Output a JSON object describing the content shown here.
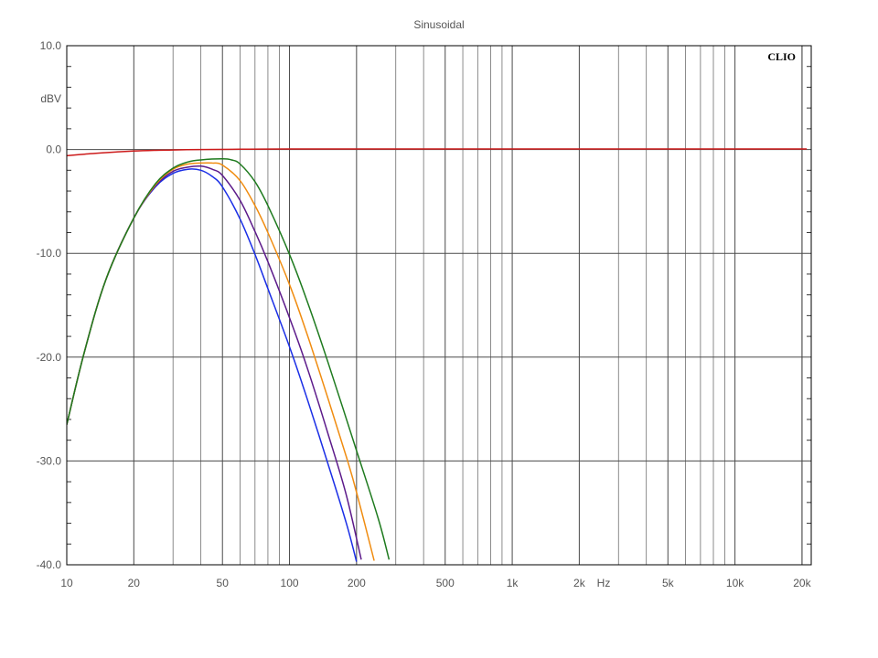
{
  "chart_data": {
    "type": "line",
    "title": "Sinusoidal",
    "brand": "CLIO",
    "ylabel": "dBV",
    "xunit": "Hz",
    "xscale": "log",
    "xlim": [
      10,
      22000
    ],
    "ylim": [
      -40,
      10
    ],
    "grid": true,
    "ytick_values": [
      10,
      0,
      -10,
      -20,
      -30,
      -40
    ],
    "ytick_labels": [
      "10.0",
      "0.0",
      "-10.0",
      "-20.0",
      "-30.0",
      "-40.0"
    ],
    "xtick_values": [
      10,
      20,
      50,
      100,
      200,
      500,
      1000,
      2000,
      5000,
      10000,
      20000
    ],
    "xtick_labels": [
      "10",
      "20",
      "50",
      "100",
      "200",
      "500",
      "1k",
      "2k",
      "5k",
      "10k",
      "20k"
    ],
    "series": [
      {
        "color": "#cc1a1a",
        "x": [
          10,
          12,
          15,
          20,
          25,
          30,
          40,
          60,
          100,
          1000,
          10000,
          21000
        ],
        "y": [
          -0.6,
          -0.45,
          -0.3,
          -0.15,
          -0.08,
          -0.04,
          0.0,
          0.03,
          0.05,
          0.05,
          0.05,
          0.05
        ]
      },
      {
        "color": "#1a2ee6",
        "x": [
          10,
          12,
          15,
          20,
          25,
          30,
          35,
          40,
          45,
          50,
          60,
          70,
          80,
          100,
          120,
          150,
          180,
          200
        ],
        "y": [
          -26.5,
          -19.5,
          -12.5,
          -6.6,
          -3.6,
          -2.3,
          -1.9,
          -2.0,
          -2.6,
          -3.6,
          -6.7,
          -10.1,
          -13.4,
          -19.0,
          -24.0,
          -30.5,
          -36.0,
          -39.7
        ]
      },
      {
        "color": "#5c1a8a",
        "x": [
          10,
          12,
          15,
          20,
          25,
          30,
          35,
          40,
          45,
          50,
          60,
          70,
          80,
          100,
          120,
          150,
          180,
          210
        ],
        "y": [
          -26.5,
          -19.5,
          -12.5,
          -6.6,
          -3.5,
          -2.1,
          -1.7,
          -1.6,
          -1.9,
          -2.5,
          -4.9,
          -7.9,
          -10.8,
          -16.2,
          -21.0,
          -27.6,
          -33.3,
          -39.5
        ]
      },
      {
        "color": "#f08c10",
        "x": [
          10,
          12,
          15,
          20,
          25,
          30,
          35,
          40,
          45,
          50,
          60,
          70,
          80,
          100,
          120,
          150,
          180,
          200,
          240
        ],
        "y": [
          -26.5,
          -19.5,
          -12.5,
          -6.6,
          -3.4,
          -1.9,
          -1.4,
          -1.3,
          -1.3,
          -1.5,
          -3.0,
          -5.4,
          -8.0,
          -13.0,
          -17.8,
          -24.2,
          -29.6,
          -33.0,
          -39.6
        ]
      },
      {
        "color": "#1e7a1e",
        "x": [
          10,
          12,
          15,
          20,
          25,
          30,
          35,
          40,
          50,
          55,
          60,
          70,
          80,
          100,
          120,
          150,
          200,
          250,
          280
        ],
        "y": [
          -26.5,
          -19.5,
          -12.5,
          -6.6,
          -3.3,
          -1.8,
          -1.2,
          -1.0,
          -0.9,
          -1.0,
          -1.4,
          -3.1,
          -5.4,
          -10.1,
          -14.6,
          -20.7,
          -29.0,
          -35.5,
          -39.5
        ]
      }
    ]
  }
}
